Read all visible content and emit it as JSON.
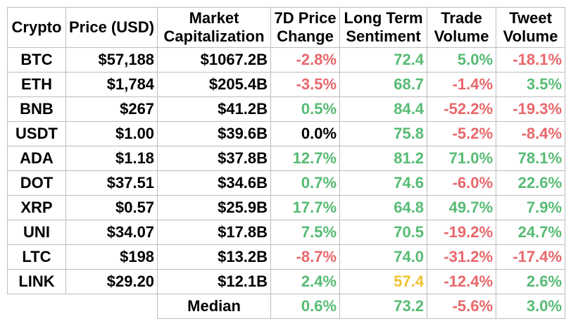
{
  "chart_data": {
    "type": "table",
    "columns": [
      {
        "line1": "Crypto",
        "line2": ""
      },
      {
        "line1": "Price (USD)",
        "line2": ""
      },
      {
        "line1": "Market",
        "line2": "Capitalization"
      },
      {
        "line1": "7D Price",
        "line2": "Change"
      },
      {
        "line1": "Long Term",
        "line2": "Sentiment"
      },
      {
        "line1": "Trade",
        "line2": "Volume"
      },
      {
        "line1": "Tweet",
        "line2": "Volume"
      }
    ],
    "rows": [
      {
        "symbol": "BTC",
        "price": "$57,188",
        "market_cap": "$1067.2B",
        "change_7d": {
          "text": "-2.8%",
          "value": -2.8,
          "color": "#e8676b"
        },
        "sentiment": {
          "text": "72.4",
          "value": 72.4,
          "color": "#57bb74"
        },
        "trade_volume": {
          "text": "5.0%",
          "value": 5.0,
          "color": "#57bb74"
        },
        "tweet_volume": {
          "text": "-18.1%",
          "value": -18.1,
          "color": "#e8676b"
        }
      },
      {
        "symbol": "ETH",
        "price": "$1,784",
        "market_cap": "$205.4B",
        "change_7d": {
          "text": "-3.5%",
          "value": -3.5,
          "color": "#e8676b"
        },
        "sentiment": {
          "text": "68.7",
          "value": 68.7,
          "color": "#57bb74"
        },
        "trade_volume": {
          "text": "-1.4%",
          "value": -1.4,
          "color": "#e8676b"
        },
        "tweet_volume": {
          "text": "3.5%",
          "value": 3.5,
          "color": "#57bb74"
        }
      },
      {
        "symbol": "BNB",
        "price": "$267",
        "market_cap": "$41.2B",
        "change_7d": {
          "text": "0.5%",
          "value": 0.5,
          "color": "#57bb74"
        },
        "sentiment": {
          "text": "84.4",
          "value": 84.4,
          "color": "#57bb74"
        },
        "trade_volume": {
          "text": "-52.2%",
          "value": -52.2,
          "color": "#e8676b"
        },
        "tweet_volume": {
          "text": "-19.3%",
          "value": -19.3,
          "color": "#e8676b"
        }
      },
      {
        "symbol": "USDT",
        "price": "$1.00",
        "market_cap": "$39.6B",
        "change_7d": {
          "text": "0.0%",
          "value": 0.0,
          "color": "#000000"
        },
        "sentiment": {
          "text": "75.8",
          "value": 75.8,
          "color": "#57bb74"
        },
        "trade_volume": {
          "text": "-5.2%",
          "value": -5.2,
          "color": "#e8676b"
        },
        "tweet_volume": {
          "text": "-8.4%",
          "value": -8.4,
          "color": "#e8676b"
        }
      },
      {
        "symbol": "ADA",
        "price": "$1.18",
        "market_cap": "$37.8B",
        "change_7d": {
          "text": "12.7%",
          "value": 12.7,
          "color": "#57bb74"
        },
        "sentiment": {
          "text": "81.2",
          "value": 81.2,
          "color": "#57bb74"
        },
        "trade_volume": {
          "text": "71.0%",
          "value": 71.0,
          "color": "#57bb74"
        },
        "tweet_volume": {
          "text": "78.1%",
          "value": 78.1,
          "color": "#57bb74"
        }
      },
      {
        "symbol": "DOT",
        "price": "$37.51",
        "market_cap": "$34.6B",
        "change_7d": {
          "text": "0.7%",
          "value": 0.7,
          "color": "#57bb74"
        },
        "sentiment": {
          "text": "74.6",
          "value": 74.6,
          "color": "#57bb74"
        },
        "trade_volume": {
          "text": "-6.0%",
          "value": -6.0,
          "color": "#e8676b"
        },
        "tweet_volume": {
          "text": "22.6%",
          "value": 22.6,
          "color": "#57bb74"
        }
      },
      {
        "symbol": "XRP",
        "price": "$0.57",
        "market_cap": "$25.9B",
        "change_7d": {
          "text": "17.7%",
          "value": 17.7,
          "color": "#57bb74"
        },
        "sentiment": {
          "text": "64.8",
          "value": 64.8,
          "color": "#57bb74"
        },
        "trade_volume": {
          "text": "49.7%",
          "value": 49.7,
          "color": "#57bb74"
        },
        "tweet_volume": {
          "text": "7.9%",
          "value": 7.9,
          "color": "#57bb74"
        }
      },
      {
        "symbol": "UNI",
        "price": "$34.07",
        "market_cap": "$17.8B",
        "change_7d": {
          "text": "7.5%",
          "value": 7.5,
          "color": "#57bb74"
        },
        "sentiment": {
          "text": "70.5",
          "value": 70.5,
          "color": "#57bb74"
        },
        "trade_volume": {
          "text": "-19.2%",
          "value": -19.2,
          "color": "#e8676b"
        },
        "tweet_volume": {
          "text": "24.7%",
          "value": 24.7,
          "color": "#57bb74"
        }
      },
      {
        "symbol": "LTC",
        "price": "$198",
        "market_cap": "$13.2B",
        "change_7d": {
          "text": "-8.7%",
          "value": -8.7,
          "color": "#e8676b"
        },
        "sentiment": {
          "text": "74.0",
          "value": 74.0,
          "color": "#57bb74"
        },
        "trade_volume": {
          "text": "-31.2%",
          "value": -31.2,
          "color": "#e8676b"
        },
        "tweet_volume": {
          "text": "-17.4%",
          "value": -17.4,
          "color": "#e8676b"
        }
      },
      {
        "symbol": "LINK",
        "price": "$29.20",
        "market_cap": "$12.1B",
        "change_7d": {
          "text": "2.4%",
          "value": 2.4,
          "color": "#57bb74"
        },
        "sentiment": {
          "text": "57.4",
          "value": 57.4,
          "color": "#f2c232"
        },
        "trade_volume": {
          "text": "-12.4%",
          "value": -12.4,
          "color": "#e8676b"
        },
        "tweet_volume": {
          "text": "2.6%",
          "value": 2.6,
          "color": "#57bb74"
        }
      }
    ],
    "median": {
      "label": "Median",
      "change_7d": {
        "text": "0.6%",
        "value": 0.6,
        "color": "#57bb74"
      },
      "sentiment": {
        "text": "73.2",
        "value": 73.2,
        "color": "#57bb74"
      },
      "trade_volume": {
        "text": "-5.6%",
        "value": -5.6,
        "color": "#e8676b"
      },
      "tweet_volume": {
        "text": "3.0%",
        "value": 3.0,
        "color": "#57bb74"
      }
    }
  }
}
